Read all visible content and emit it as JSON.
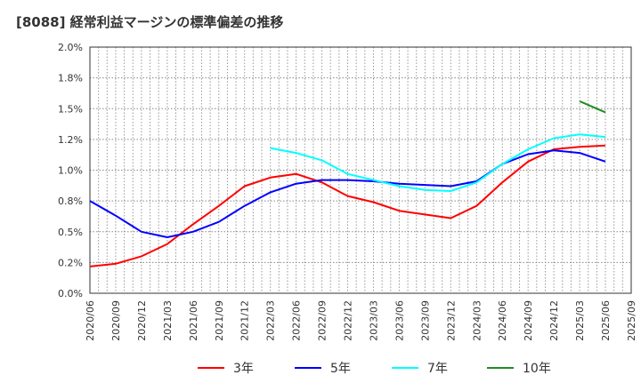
{
  "chart_data": {
    "type": "line",
    "title": "[8088]  経常利益マージンの標準偏差の推移",
    "xlabel": "",
    "ylabel": "",
    "ylim": [
      0,
      2.0
    ],
    "y_ticks": [
      0,
      0.25,
      0.5,
      0.75,
      1.0,
      1.25,
      1.5,
      1.75,
      2.0
    ],
    "y_tick_labels": [
      "0.0%",
      "0.2%",
      "0.5%",
      "0.8%",
      "1.0%",
      "1.2%",
      "1.5%",
      "1.8%",
      "2.0%"
    ],
    "x": [
      "2020/06",
      "2020/09",
      "2020/12",
      "2021/03",
      "2021/06",
      "2021/09",
      "2021/12",
      "2022/03",
      "2022/06",
      "2022/09",
      "2022/12",
      "2023/03",
      "2023/06",
      "2023/09",
      "2023/12",
      "2024/03",
      "2024/06",
      "2024/09",
      "2024/12",
      "2025/03",
      "2025/06",
      "2025/09"
    ],
    "grid": true,
    "legend_position": "bottom",
    "series": [
      {
        "name": "3年",
        "color": "#ff0000",
        "values": [
          0.217,
          0.24,
          0.3,
          0.4,
          0.56,
          0.71,
          0.87,
          0.94,
          0.97,
          0.9,
          0.79,
          0.74,
          0.67,
          0.64,
          0.61,
          0.71,
          0.9,
          1.07,
          1.17,
          1.19,
          1.2,
          null
        ]
      },
      {
        "name": "5年",
        "color": "#0000ff",
        "values": [
          0.75,
          0.63,
          0.5,
          0.455,
          0.5,
          0.58,
          0.71,
          0.82,
          0.89,
          0.92,
          0.92,
          0.91,
          0.89,
          0.88,
          0.87,
          0.91,
          1.05,
          1.13,
          1.16,
          1.14,
          1.07,
          null
        ]
      },
      {
        "name": "7年",
        "color": "#00ffff",
        "values": [
          null,
          null,
          null,
          null,
          null,
          null,
          null,
          1.18,
          1.14,
          1.08,
          0.97,
          0.92,
          0.87,
          0.84,
          0.83,
          0.9,
          1.05,
          1.17,
          1.26,
          1.29,
          1.27,
          null
        ]
      },
      {
        "name": "10年",
        "color": "#228b22",
        "values": [
          null,
          null,
          null,
          null,
          null,
          null,
          null,
          null,
          null,
          null,
          null,
          null,
          null,
          null,
          null,
          null,
          null,
          null,
          null,
          1.56,
          1.47,
          null
        ]
      }
    ]
  }
}
